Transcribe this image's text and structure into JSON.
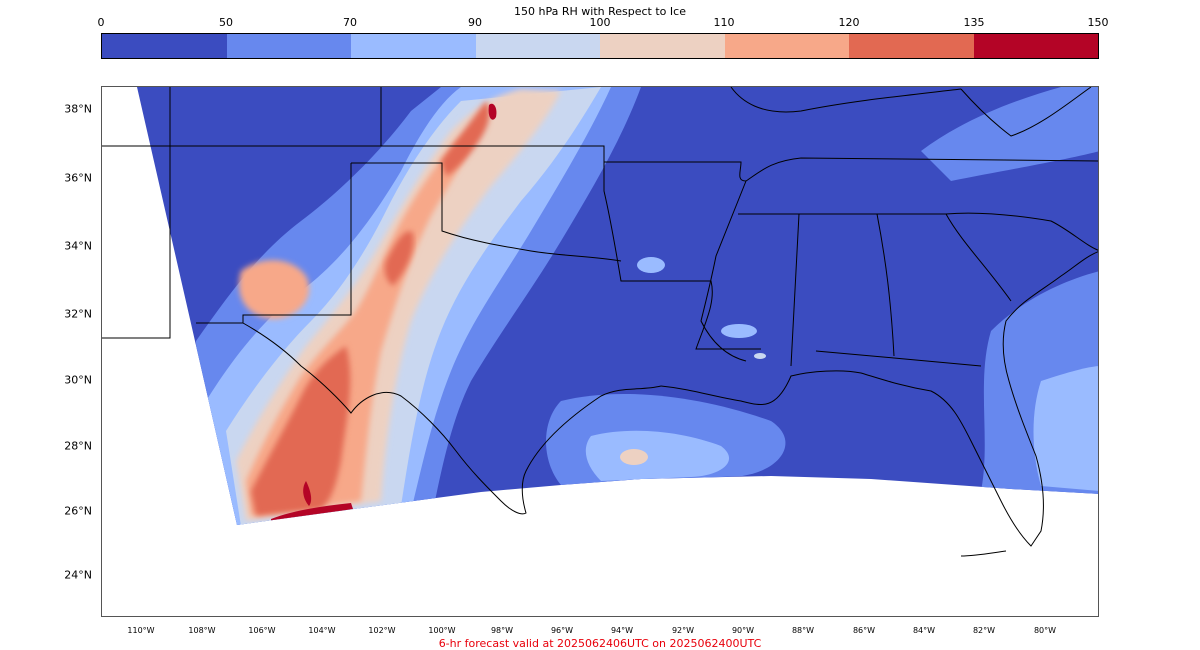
{
  "colorbar": {
    "title": "150 hPa RH with Respect to Ice",
    "ticks": [
      "0",
      "50",
      "70",
      "90",
      "100",
      "110",
      "120",
      "135",
      "150"
    ],
    "colors": [
      "#3b4cc0",
      "#6788ee",
      "#9abbff",
      "#c9d7f0",
      "#edd1c2",
      "#f7a889",
      "#e26952",
      "#b40426"
    ]
  },
  "lat_labels": [
    "38°N",
    "36°N",
    "34°N",
    "32°N",
    "30°N",
    "28°N",
    "26°N",
    "24°N"
  ],
  "lon_labels": [
    "110°W",
    "108°W",
    "106°W",
    "104°W",
    "102°W",
    "100°W",
    "98°W",
    "96°W",
    "94°W",
    "92°W",
    "90°W",
    "88°W",
    "86°W",
    "84°W",
    "82°W",
    "80°W"
  ],
  "footer": {
    "text": "6-hr forecast valid at 2025062406UTC on 2025062400UTC",
    "color": "#e8000b"
  }
}
